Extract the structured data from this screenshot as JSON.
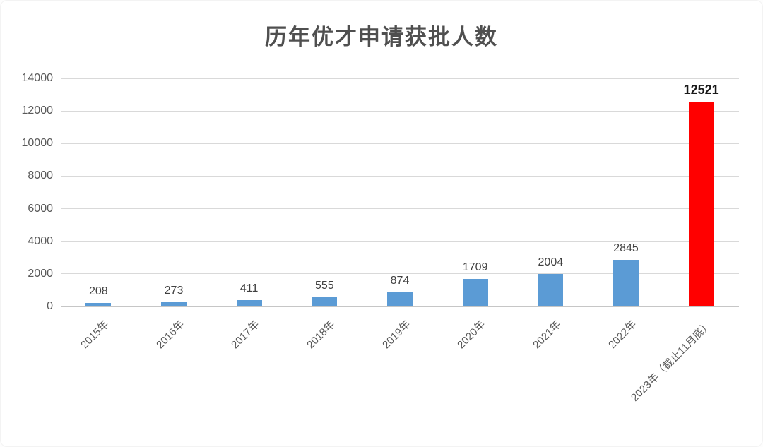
{
  "chart_data": {
    "type": "bar",
    "title": "历年优才申请获批人数",
    "categories": [
      "2015年",
      "2016年",
      "2017年",
      "2018年",
      "2019年",
      "2020年",
      "2021年",
      "2022年",
      "2023年（截止11月底）"
    ],
    "values": [
      208,
      273,
      411,
      555,
      874,
      1709,
      2004,
      2845,
      12521
    ],
    "data_labels": [
      "208",
      "273",
      "411",
      "555",
      "874",
      "1709",
      "2004",
      "2845",
      "12521"
    ],
    "highlight_index": 8,
    "bar_color": "#5b9bd5",
    "highlight_color": "#ff0000",
    "ylim": [
      0,
      14000
    ],
    "yticks": [
      0,
      2000,
      4000,
      6000,
      8000,
      10000,
      12000,
      14000
    ],
    "grid": true,
    "legend": "none",
    "x_label_rotation_deg": 45,
    "xlabel": "",
    "ylabel": ""
  },
  "colors": {
    "title": "#4f4f4f",
    "axis_label": "#595959",
    "data_label": "#404040",
    "highlight_label": "#1a1a1a",
    "gridline": "#d9d9d9",
    "baseline": "#c6c6c6",
    "background": "#ffffff"
  }
}
